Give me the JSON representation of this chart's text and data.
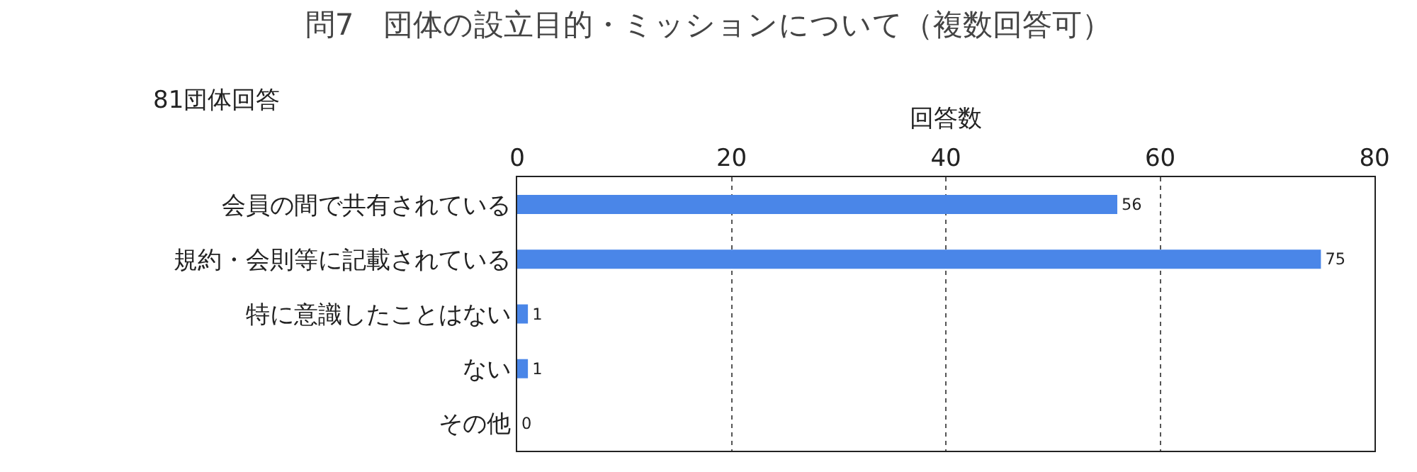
{
  "chart_data": {
    "type": "bar",
    "orientation": "horizontal",
    "title": "問7　団体の設立目的・ミッションについて（複数回答可）",
    "xlabel": "回答数",
    "annotations": [
      "81団体回答"
    ],
    "categories": [
      "会員の間で共有されている",
      "規約・会則等に記載されている",
      "特に意識したことはない",
      "ない",
      "その他"
    ],
    "values": [
      56,
      75,
      1,
      1,
      0
    ],
    "color": "#4a86e8",
    "data_labels": true,
    "xlim": [
      0,
      80
    ],
    "xticks": [
      0,
      20,
      40,
      60,
      80
    ],
    "grid": "x",
    "legend": false
  }
}
